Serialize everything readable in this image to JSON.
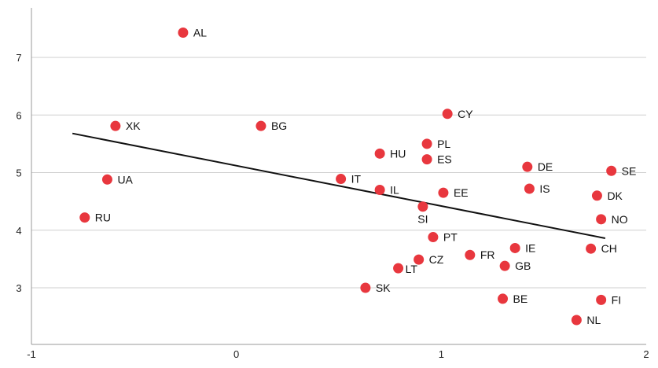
{
  "chart_data": {
    "type": "scatter",
    "title": "",
    "xlabel": "",
    "ylabel": "",
    "xlim": [
      -1,
      2
    ],
    "ylim": [
      2.5,
      7.7
    ],
    "x_ticks": [
      -1,
      0,
      1,
      2
    ],
    "y_ticks": [
      3,
      4,
      5,
      6,
      7
    ],
    "grid": "horizontal",
    "legend": "none",
    "point_color": "#e8373e",
    "trendline_color": "#111111",
    "trendline": {
      "x": [
        -0.8,
        1.8
      ],
      "y": [
        5.68,
        3.86
      ]
    },
    "points": [
      {
        "label": "AL",
        "x": -0.26,
        "y": 7.43
      },
      {
        "label": "XK",
        "x": -0.59,
        "y": 5.81
      },
      {
        "label": "BG",
        "x": 0.12,
        "y": 5.81
      },
      {
        "label": "UA",
        "x": -0.63,
        "y": 4.88
      },
      {
        "label": "RU",
        "x": -0.74,
        "y": 4.22
      },
      {
        "label": "IT",
        "x": 0.51,
        "y": 4.89
      },
      {
        "label": "IL",
        "x": 0.7,
        "y": 4.7
      },
      {
        "label": "HU",
        "x": 0.7,
        "y": 5.33
      },
      {
        "label": "PL",
        "x": 0.93,
        "y": 5.5
      },
      {
        "label": "ES",
        "x": 0.93,
        "y": 5.23
      },
      {
        "label": "CY",
        "x": 1.03,
        "y": 6.02
      },
      {
        "label": "EE",
        "x": 1.01,
        "y": 4.65
      },
      {
        "label": "SI",
        "x": 0.91,
        "y": 4.41
      },
      {
        "label": "PT",
        "x": 0.96,
        "y": 3.88
      },
      {
        "label": "CZ",
        "x": 0.89,
        "y": 3.49
      },
      {
        "label": "LT",
        "x": 0.79,
        "y": 3.34
      },
      {
        "label": "SK",
        "x": 0.63,
        "y": 3.0
      },
      {
        "label": "FR",
        "x": 1.14,
        "y": 3.57
      },
      {
        "label": "IE",
        "x": 1.36,
        "y": 3.69
      },
      {
        "label": "GB",
        "x": 1.31,
        "y": 3.38
      },
      {
        "label": "BE",
        "x": 1.3,
        "y": 2.81
      },
      {
        "label": "DE",
        "x": 1.42,
        "y": 5.1
      },
      {
        "label": "IS",
        "x": 1.43,
        "y": 4.72
      },
      {
        "label": "SE",
        "x": 1.83,
        "y": 5.03
      },
      {
        "label": "DK",
        "x": 1.76,
        "y": 4.6
      },
      {
        "label": "NO",
        "x": 1.78,
        "y": 4.19
      },
      {
        "label": "CH",
        "x": 1.73,
        "y": 3.68
      },
      {
        "label": "FI",
        "x": 1.78,
        "y": 2.79
      },
      {
        "label": "NL",
        "x": 1.66,
        "y": 2.44
      }
    ]
  }
}
